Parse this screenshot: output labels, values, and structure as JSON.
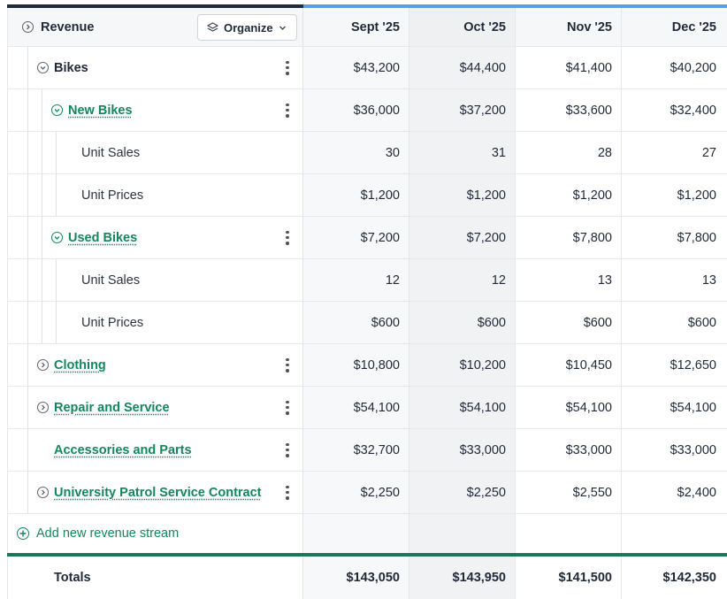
{
  "header": {
    "title": "Revenue",
    "organize_label": "Organize",
    "months": [
      "Sept '25",
      "Oct '25",
      "Nov '25",
      "Dec '25"
    ]
  },
  "rows": [
    {
      "label": "Bikes",
      "values": [
        "$43,200",
        "$44,400",
        "$41,400",
        "$40,200"
      ]
    },
    {
      "label": "New Bikes",
      "values": [
        "$36,000",
        "$37,200",
        "$33,600",
        "$32,400"
      ]
    },
    {
      "label": "Unit Sales",
      "values": [
        "30",
        "31",
        "28",
        "27"
      ]
    },
    {
      "label": "Unit Prices",
      "values": [
        "$1,200",
        "$1,200",
        "$1,200",
        "$1,200"
      ]
    },
    {
      "label": "Used Bikes",
      "values": [
        "$7,200",
        "$7,200",
        "$7,800",
        "$7,800"
      ]
    },
    {
      "label": "Unit Sales",
      "values": [
        "12",
        "12",
        "13",
        "13"
      ]
    },
    {
      "label": "Unit Prices",
      "values": [
        "$600",
        "$600",
        "$600",
        "$600"
      ]
    },
    {
      "label": "Clothing",
      "values": [
        "$10,800",
        "$10,200",
        "$10,450",
        "$12,650"
      ]
    },
    {
      "label": "Repair and Service",
      "values": [
        "$54,100",
        "$54,100",
        "$54,100",
        "$54,100"
      ]
    },
    {
      "label": "Accessories and Parts",
      "values": [
        "$32,700",
        "$33,000",
        "$33,000",
        "$33,000"
      ]
    },
    {
      "label": "University Patrol Service Contract",
      "values": [
        "$2,250",
        "$2,250",
        "$2,550",
        "$2,400"
      ]
    }
  ],
  "add_stream_label": "Add new revenue stream",
  "totals": {
    "label": "Totals",
    "values": [
      "$143,050",
      "$143,950",
      "$141,500",
      "$142,350"
    ]
  },
  "colors": {
    "accent_green": "#15865a",
    "header_dark": "#1f2a3c",
    "header_blue": "#5b9fe0"
  },
  "icons": {
    "collapse": "chevron-circle-down-icon",
    "expand": "chevron-circle-right-icon",
    "more": "kebab-menu-icon",
    "organize": "layers-icon",
    "add": "plus-circle-icon"
  }
}
